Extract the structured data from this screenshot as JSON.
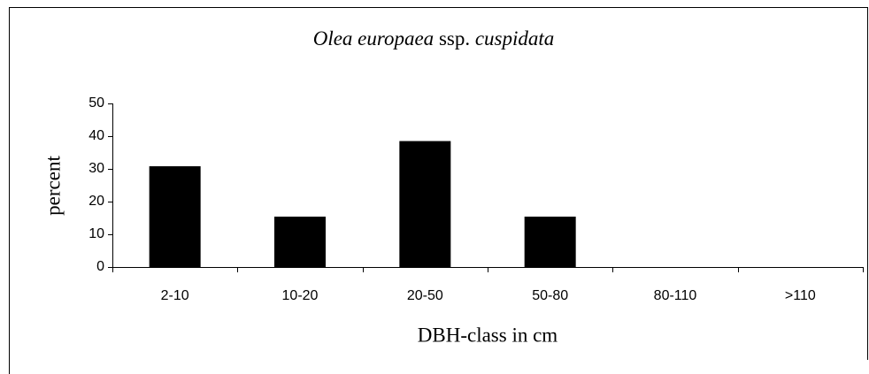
{
  "chart_data": {
    "type": "bar",
    "title": [
      "Olea europaea",
      "ssp.",
      "cuspidata"
    ],
    "title_italic": [
      true,
      false,
      true
    ],
    "x_label": "DBH-class in cm",
    "y_label": "percent",
    "categories": [
      "2-10",
      "10-20",
      "20-50",
      "50-80",
      "80-110",
      ">110"
    ],
    "values": [
      30.8,
      15.4,
      38.5,
      15.4,
      0,
      0
    ],
    "color": "#000000",
    "ylim": [
      0,
      50
    ],
    "yticks": [
      0,
      10,
      20,
      30,
      40,
      50
    ],
    "grid": false
  }
}
